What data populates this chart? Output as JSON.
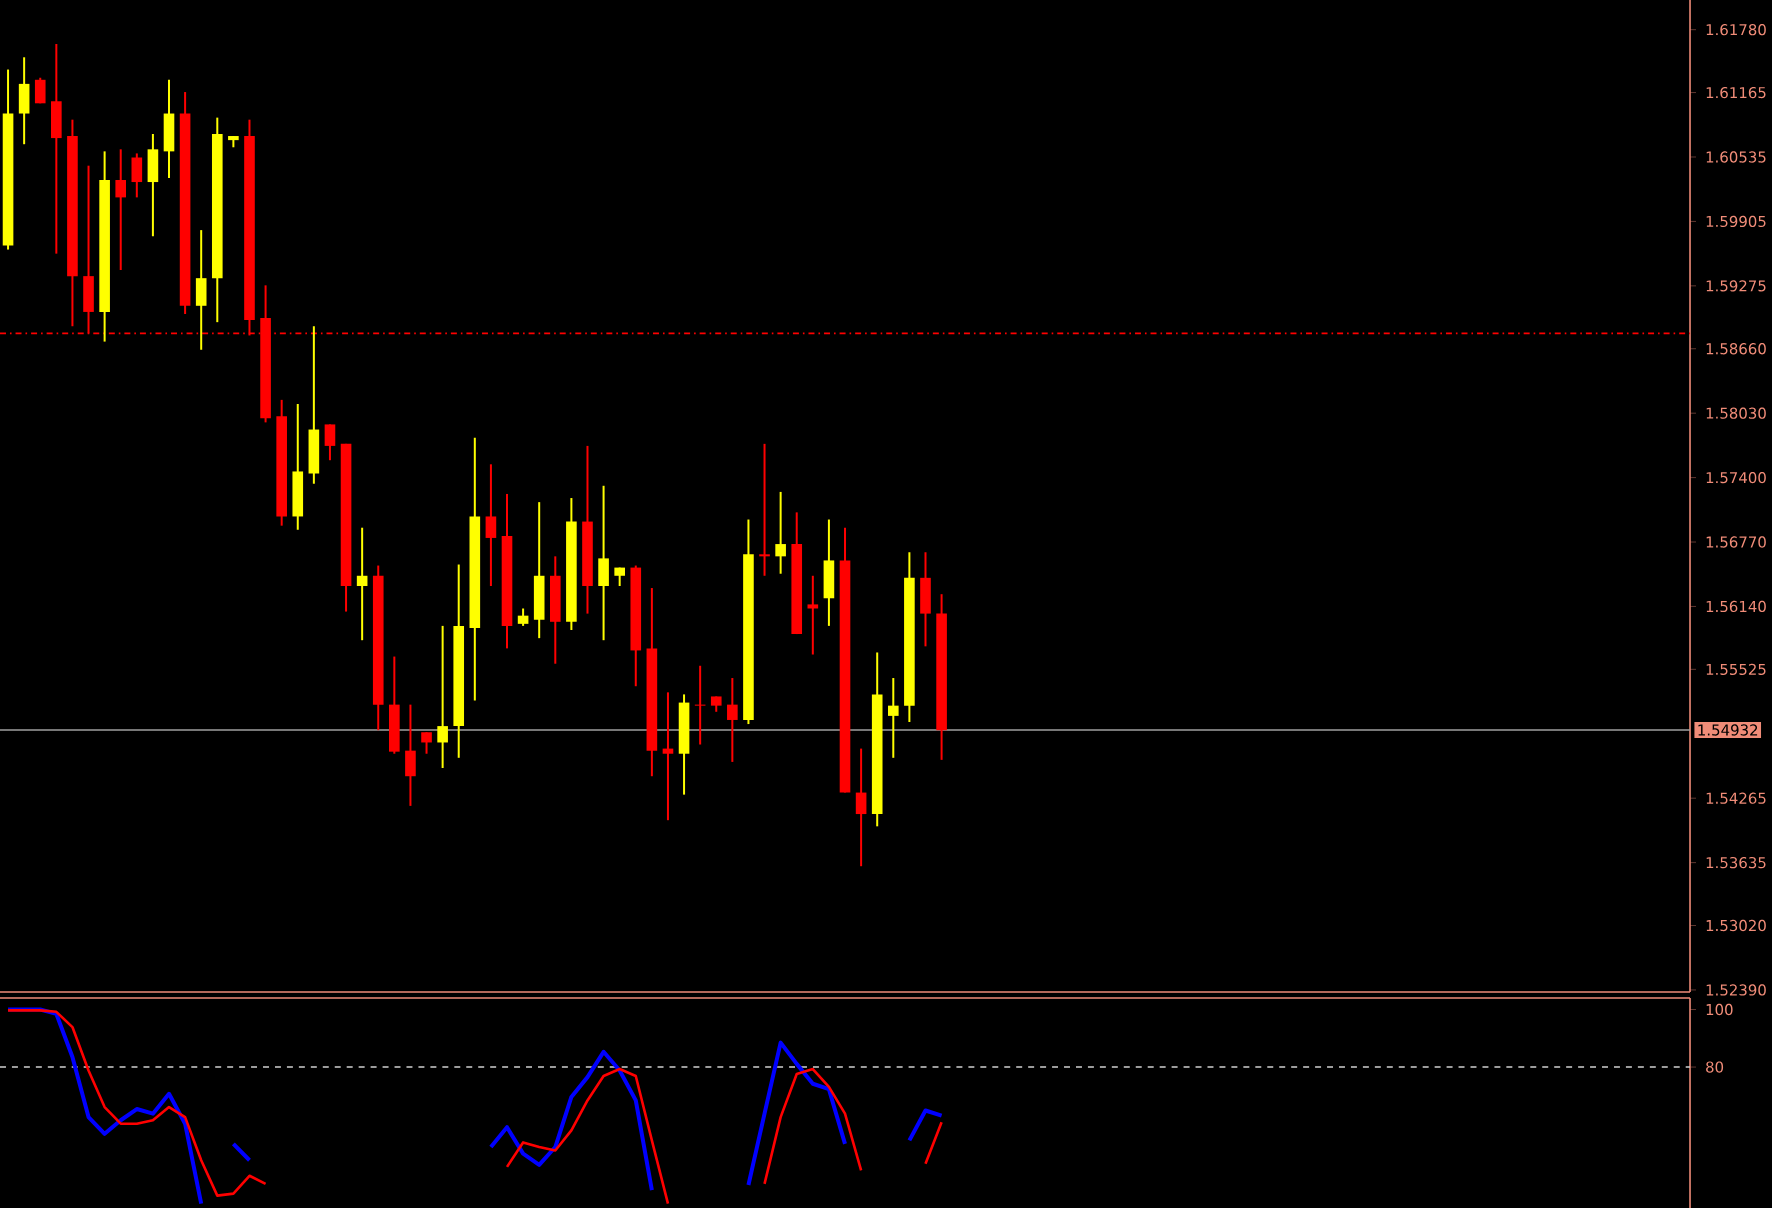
{
  "chart_data": [
    {
      "type": "candlestick",
      "categories": [
        null,
        null,
        null,
        null,
        null,
        null,
        null,
        null,
        null,
        null,
        null,
        null,
        null,
        null,
        null,
        null,
        null,
        null,
        null,
        null,
        null,
        null,
        null,
        null,
        null,
        null,
        null,
        null,
        null,
        null,
        null,
        null,
        null,
        null,
        null,
        null,
        null,
        null,
        null,
        null,
        null,
        null,
        null,
        null,
        null,
        null,
        null,
        null,
        null,
        null,
        null,
        null,
        null,
        null,
        null,
        null,
        null,
        null,
        null,
        null,
        null,
        null,
        null,
        null,
        null,
        null,
        null,
        null,
        null,
        null,
        null,
        null,
        null,
        null,
        null,
        null,
        null,
        null,
        null,
        null,
        null,
        null,
        null,
        null,
        null,
        null,
        null,
        null,
        null,
        null,
        null,
        null,
        null,
        null,
        null,
        null,
        null,
        null,
        null,
        null,
        null,
        null,
        null,
        null,
        null
      ],
      "ohlc": [
        [
          1.5967,
          1.6139,
          1.5963,
          1.6096
        ],
        [
          1.6096,
          1.6151,
          1.6066,
          1.6125
        ],
        [
          1.6129,
          1.6131,
          1.6106,
          1.6106
        ],
        [
          1.6108,
          1.6164,
          1.5959,
          1.6072
        ],
        [
          1.6074,
          1.609,
          1.5888,
          1.5937
        ],
        [
          1.5937,
          1.6045,
          1.5881,
          1.5902
        ],
        [
          1.5902,
          1.6059,
          1.5873,
          1.6031
        ],
        [
          1.6031,
          1.6061,
          1.5943,
          1.6014
        ],
        [
          1.6053,
          1.6057,
          1.6014,
          1.6029
        ],
        [
          1.6029,
          1.6076,
          1.5976,
          1.6061
        ],
        [
          1.6059,
          1.6129,
          1.6033,
          1.6096
        ],
        [
          1.6096,
          1.6117,
          1.59,
          1.5908
        ],
        [
          1.5908,
          1.5982,
          1.5865,
          1.5935
        ],
        [
          1.5935,
          1.6092,
          1.5892,
          1.6076
        ],
        [
          1.607,
          1.6074,
          1.6063,
          1.6074
        ],
        [
          1.6074,
          1.609,
          1.5879,
          1.5894
        ],
        [
          1.5896,
          1.5928,
          1.5794,
          1.5798
        ],
        [
          1.58,
          1.5816,
          1.5693,
          1.5702
        ],
        [
          1.5702,
          1.5812,
          1.5689,
          1.5746
        ],
        [
          1.5744,
          1.5888,
          1.5734,
          1.5787
        ],
        [
          1.5792,
          1.5792,
          1.5757,
          1.5771
        ],
        [
          1.5773,
          1.5773,
          1.5609,
          1.5634
        ],
        [
          1.5634,
          1.5691,
          1.5581,
          1.5644
        ],
        [
          1.5644,
          1.5654,
          1.5493,
          1.5518
        ],
        [
          1.5518,
          1.5565,
          1.547,
          1.5472
        ],
        [
          1.5473,
          1.5518,
          1.5419,
          1.5448
        ],
        [
          1.5491,
          1.5491,
          1.547,
          1.5481
        ],
        [
          1.5481,
          1.5595,
          1.5456,
          1.5497
        ],
        [
          1.5497,
          1.5655,
          1.5466,
          1.5595
        ],
        [
          1.5593,
          1.5779,
          1.5522,
          1.5702
        ],
        [
          1.5702,
          1.5753,
          1.5634,
          1.5681
        ],
        [
          1.5683,
          1.5724,
          1.5573,
          1.5595
        ],
        [
          1.5597,
          1.5612,
          1.5595,
          1.5605
        ],
        [
          1.5601,
          1.5716,
          1.5583,
          1.5644
        ],
        [
          1.5644,
          1.5663,
          1.5558,
          1.5599
        ],
        [
          1.5599,
          1.572,
          1.5591,
          1.5697
        ],
        [
          1.5697,
          1.5771,
          1.5607,
          1.5634
        ],
        [
          1.5634,
          1.5732,
          1.5581,
          1.5661
        ],
        [
          1.5644,
          1.5652,
          1.5634,
          1.5652
        ],
        [
          1.5652,
          1.5654,
          1.5536,
          1.5571
        ],
        [
          1.5573,
          1.5632,
          1.5448,
          1.5473
        ],
        [
          1.5475,
          1.553,
          1.5405,
          1.547
        ],
        [
          1.547,
          1.5528,
          1.543,
          1.552
        ],
        [
          1.5518,
          1.5556,
          1.5479,
          1.5517
        ],
        [
          1.5526,
          1.5526,
          1.5511,
          1.5517
        ],
        [
          1.5518,
          1.5544,
          1.5462,
          1.5503
        ],
        [
          1.5503,
          1.5699,
          1.5499,
          1.5665
        ],
        [
          1.5665,
          1.5773,
          1.5644,
          1.5663
        ],
        [
          1.5663,
          1.5726,
          1.5646,
          1.5675
        ],
        [
          1.5675,
          1.5706,
          1.5587,
          1.5587
        ],
        [
          1.5616,
          1.5644,
          1.5567,
          1.5612
        ],
        [
          1.5622,
          1.5699,
          1.5595,
          1.5659
        ],
        [
          1.5659,
          1.5691,
          1.5432,
          1.5432
        ],
        [
          1.5432,
          1.5475,
          1.536,
          1.5411
        ],
        [
          1.5411,
          1.5569,
          1.5399,
          1.5528
        ],
        [
          1.5507,
          1.5544,
          1.5466,
          1.5517
        ],
        [
          1.5517,
          1.5667,
          1.5501,
          1.5642
        ],
        [
          1.5642,
          1.5667,
          1.5575,
          1.5607
        ],
        [
          1.5607,
          1.5626,
          1.5464,
          1.5493
        ],
        null,
        null,
        null,
        null,
        null,
        null,
        null,
        null,
        null,
        null,
        null,
        null,
        null,
        null,
        null,
        null,
        null,
        null,
        null,
        null,
        null,
        null,
        null,
        null,
        null,
        null,
        null,
        null,
        null,
        null,
        null,
        null,
        null,
        null,
        null,
        null,
        null,
        null,
        null,
        null,
        null,
        null,
        null,
        null,
        null,
        null
      ],
      "colors": [
        "#ffff00",
        "#ffff00",
        "#ff0000",
        "#ff0000",
        "#ff0000",
        "#ff0000",
        "#ffff00",
        "#ff0000",
        "#ff0000",
        "#ffff00",
        "#ffff00",
        "#ff0000",
        "#ffff00",
        "#ffff00",
        "#ffff00",
        "#ff0000",
        "#ff0000",
        "#ff0000",
        "#ffff00",
        "#ffff00",
        "#ff0000",
        "#ff0000",
        "#ffff00",
        "#ff0000",
        "#ff0000",
        "#ff0000",
        "#ff0000",
        "#ffff00",
        "#ffff00",
        "#ffff00",
        "#ff0000",
        "#ff0000",
        "#ffff00",
        "#ffff00",
        "#ff0000",
        "#ffff00",
        "#ff0000",
        "#ffff00",
        "#ffff00",
        "#ff0000",
        "#ff0000",
        "#ff0000",
        "#ffff00",
        "#ff0000",
        "#ff0000",
        "#ff0000",
        "#ffff00",
        "#ff0000",
        "#ffff00",
        "#ff0000",
        "#ff0000",
        "#ffff00",
        "#ff0000",
        "#ff0000",
        "#ffff00",
        "#ffff00",
        "#ffff00",
        "#ff0000",
        "#ff0000",
        null,
        null,
        null,
        null,
        null,
        null,
        null,
        null,
        null,
        null,
        null,
        null,
        null,
        null,
        null,
        null,
        null,
        null,
        null,
        null,
        null,
        null,
        null,
        null,
        null,
        null,
        null,
        null,
        null,
        null,
        null,
        null,
        null,
        null,
        null,
        null,
        null,
        null,
        null,
        null,
        null,
        null,
        null,
        null,
        null,
        null
      ],
      "ylim": [
        1.5237,
        1.6207
      ],
      "yticks": [
        {
          "value": 1.6178,
          "label": "1.61780"
        },
        {
          "value": 1.61165,
          "label": "1.61165"
        },
        {
          "value": 1.60535,
          "label": "1.60535"
        },
        {
          "value": 1.59905,
          "label": "1.59905"
        },
        {
          "value": 1.59275,
          "label": "1.59275"
        },
        {
          "value": 1.5866,
          "label": "1.58660"
        },
        {
          "value": 1.5803,
          "label": "1.58030"
        },
        {
          "value": 1.574,
          "label": "1.57400"
        },
        {
          "value": 1.5677,
          "label": "1.56770"
        },
        {
          "value": 1.5614,
          "label": "1.56140"
        },
        {
          "value": 1.55525,
          "label": "1.55525"
        },
        {
          "value": 1.54265,
          "label": "1.54265"
        },
        {
          "value": 1.53635,
          "label": "1.53635"
        },
        {
          "value": 1.5302,
          "label": "1.53020"
        },
        {
          "value": 1.5239,
          "label": "1.52390"
        }
      ],
      "ref_lines": [
        {
          "axis": "y",
          "value": 1.5881,
          "color": "#ff0000",
          "line_style": "dashdot"
        },
        {
          "axis": "y",
          "value": 1.54932,
          "label": "1.54932",
          "color": "#a0a0a0",
          "line_style": "solid"
        }
      ],
      "tick_labels": "y"
    },
    {
      "type": "line",
      "categories": [
        null,
        null,
        null,
        null,
        null,
        null,
        null,
        null,
        null,
        null,
        null,
        null,
        null,
        null,
        null,
        null,
        null,
        null,
        null,
        null,
        null,
        null,
        null,
        null,
        null,
        null,
        null,
        null,
        null,
        null,
        null,
        null,
        null,
        null,
        null,
        null,
        null,
        null,
        null,
        null,
        null,
        null,
        null,
        null,
        null,
        null,
        null,
        null,
        null,
        null,
        null,
        null,
        null,
        null,
        null,
        null,
        null,
        null,
        null,
        null,
        null,
        null,
        null,
        null,
        null,
        null,
        null,
        null,
        null,
        null,
        null,
        null,
        null,
        null,
        null,
        null,
        null,
        null,
        null,
        null,
        null,
        null,
        null,
        null,
        null,
        null,
        null,
        null,
        null,
        null,
        null,
        null,
        null,
        null,
        null,
        null,
        null,
        null,
        null,
        null,
        null,
        null,
        null,
        null,
        null
      ],
      "series": [
        {
          "color": "#0000ff",
          "values": [
            100,
            100,
            100,
            98.5,
            83.5,
            62.6,
            56.8,
            61.5,
            65.4,
            63.8,
            70.7,
            60.3,
            32.5,
            null,
            53.3,
            47.6,
            null,
            null,
            null,
            null,
            null,
            null,
            null,
            null,
            null,
            null,
            null,
            null,
            null,
            null,
            52.2,
            59.1,
            49.9,
            46.0,
            52.2,
            69.6,
            76.5,
            85.3,
            78.8,
            68.4,
            37.2,
            null,
            null,
            null,
            null,
            null,
            39.0,
            63.8,
            88.5,
            81.1,
            74.2,
            72.3,
            53.3,
            null,
            null,
            null,
            54.5,
            64.9,
            63.1,
            null,
            null,
            null,
            null,
            null,
            null,
            null,
            null,
            null,
            null,
            null,
            null,
            null,
            null,
            null,
            null,
            null,
            null,
            null,
            null,
            null,
            null,
            null,
            null,
            null,
            null,
            null,
            null,
            null,
            null,
            null,
            null,
            null,
            null,
            null,
            null,
            null,
            null,
            null,
            null,
            null,
            null,
            null,
            null,
            null,
            null
          ]
        },
        {
          "color": "#ff0000",
          "values": [
            99.7,
            99.7,
            99.7,
            99.2,
            93.9,
            78.8,
            66.1,
            60.3,
            60.3,
            61.5,
            66.1,
            62.6,
            47.6,
            35.3,
            36.0,
            42.2,
            39.4,
            null,
            null,
            null,
            null,
            null,
            null,
            null,
            null,
            null,
            null,
            null,
            null,
            null,
            null,
            45.3,
            53.8,
            52.2,
            51.0,
            58.0,
            68.4,
            76.9,
            79.3,
            76.9,
            54.5,
            32.5,
            null,
            null,
            null,
            null,
            null,
            39.4,
            62.6,
            77.6,
            79.3,
            73.1,
            63.8,
            44.1,
            null,
            null,
            null,
            46.4,
            60.8,
            null,
            null,
            null,
            null,
            null,
            null,
            null,
            null,
            null,
            null,
            null,
            null,
            null,
            null,
            null,
            null,
            null,
            null,
            null,
            null,
            null,
            null,
            null,
            null,
            null,
            null,
            null,
            null,
            null,
            null,
            null,
            null,
            null,
            null,
            null,
            null,
            null,
            null,
            null,
            null,
            null,
            null,
            null,
            null,
            null,
            null
          ]
        }
      ],
      "ylim": [
        31,
        104
      ],
      "yticks": [
        100,
        80
      ],
      "ref_lines": [
        {
          "axis": "y",
          "value": 80,
          "color": "#d0d0d0",
          "line_style": "dashed"
        }
      ],
      "marker": "none",
      "line_style": "solid",
      "tick_labels": "y"
    }
  ]
}
